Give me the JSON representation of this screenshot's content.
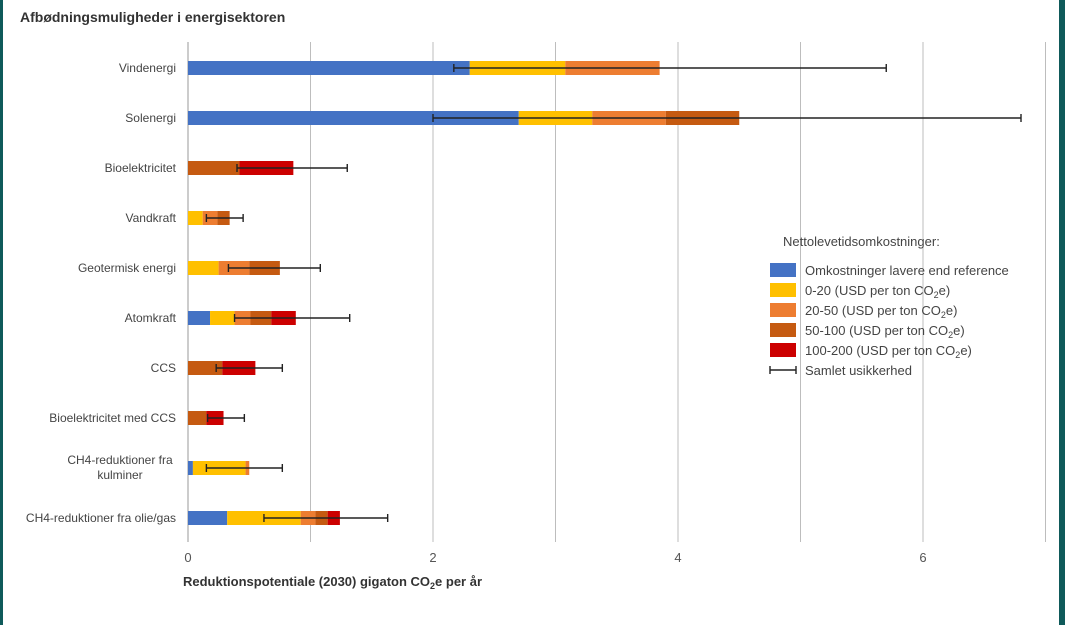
{
  "title": "Afbødningsmuligheder i energisektoren",
  "chart_data": {
    "type": "bar",
    "orientation": "horizontal",
    "stacked": true,
    "xlabel_pre": "Reduktionspotentiale (2030) gigaton CO",
    "xlabel_sub": "2",
    "xlabel_post": "e per år",
    "xlim": [
      0,
      7
    ],
    "xticks": [
      0,
      2,
      4,
      6
    ],
    "grid": true,
    "legend_title": "Nettolevetidsomkostninger:",
    "legend_position": "right",
    "categories": [
      "Vindenergi",
      "Solenergi",
      "Bioelektricitet",
      "Vandkraft",
      "Geotermisk energi",
      "Atomkraft",
      "CCS",
      "Bioelektricitet med CCS",
      "CH4-reduktioner fra kulminer",
      "CH4-reduktioner fra olie/gas"
    ],
    "series": [
      {
        "name": "Omkostninger lavere end reference",
        "color": "#4472c4",
        "values": [
          2.3,
          2.7,
          0,
          0,
          0,
          0.18,
          0,
          0,
          0.04,
          0.32
        ]
      },
      {
        "name": "0-20 (USD per ton CO2e)",
        "label_pre": "0-20 (USD per ton CO",
        "label_sub": "2",
        "label_post": "e)",
        "color": "#ffc000",
        "values": [
          0.78,
          0.6,
          0,
          0.12,
          0.25,
          0.2,
          0,
          0,
          0.43,
          0.6
        ]
      },
      {
        "name": "20-50 (USD per ton CO2e)",
        "label_pre": "20-50 (USD per ton CO",
        "label_sub": "2",
        "label_post": "e)",
        "color": "#ed7d31",
        "values": [
          0.77,
          0.6,
          0,
          0.12,
          0.25,
          0.13,
          0,
          0,
          0.03,
          0.12
        ]
      },
      {
        "name": "50-100 (USD per ton CO2e)",
        "label_pre": "50-100 (USD per ton CO",
        "label_sub": "2",
        "label_post": "e)",
        "color": "#c55a11",
        "values": [
          0,
          0.6,
          0.42,
          0.1,
          0.25,
          0.17,
          0.28,
          0.15,
          0,
          0.1
        ]
      },
      {
        "name": "100-200 (USD per ton CO2e)",
        "label_pre": "100-200 (USD per ton CO",
        "label_sub": "2",
        "label_post": "e)",
        "color": "#cc0000",
        "values": [
          0,
          0,
          0.44,
          0,
          0,
          0.2,
          0.27,
          0.14,
          0,
          0.1
        ]
      }
    ],
    "error_bars": {
      "name": "Samlet usikkerhed",
      "ranges": [
        [
          2.17,
          5.7
        ],
        [
          2.0,
          6.8
        ],
        [
          0.4,
          1.3
        ],
        [
          0.15,
          0.45
        ],
        [
          0.33,
          1.08
        ],
        [
          0.38,
          1.32
        ],
        [
          0.23,
          0.77
        ],
        [
          0.16,
          0.46
        ],
        [
          0.15,
          0.77
        ],
        [
          0.62,
          1.63
        ]
      ]
    }
  }
}
